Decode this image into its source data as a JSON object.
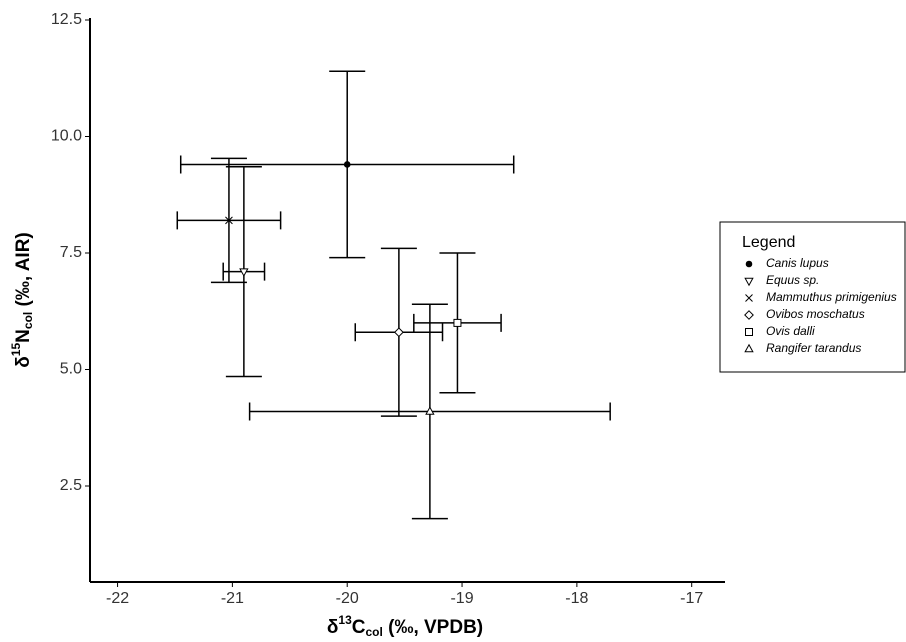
{
  "chart_data": {
    "type": "scatter",
    "x_label_parts": [
      "δ",
      "13",
      "C",
      "col",
      " (‰, VPDB)"
    ],
    "y_label_parts": [
      "δ",
      "15",
      "N",
      "col",
      " (‰, AIR)"
    ],
    "xlim": [
      -22.24,
      -16.71
    ],
    "ylim": [
      0.44,
      12.5
    ],
    "xticks": [
      -22,
      -21,
      -20,
      -19,
      -18,
      -17
    ],
    "yticks": [
      2.5,
      {
        "value": 5,
        "label": "5.0"
      },
      {
        "value": 7.5,
        "label": "7.5"
      },
      {
        "value": 10,
        "label": "10.0"
      },
      12.5
    ],
    "legend_title": "Legend",
    "legend_position": "right",
    "color": "#000000",
    "series": [
      {
        "name": "Canis lupus",
        "marker": "circle",
        "x": [
          -20.0
        ],
        "y": [
          9.4
        ],
        "xerr": [
          1.45
        ],
        "yerr": [
          2.0
        ]
      },
      {
        "name": "Equus sp.",
        "marker": "triangle-down",
        "x": [
          -20.9
        ],
        "y": [
          7.1
        ],
        "xerr": [
          0.18
        ],
        "yerr": [
          2.25
        ]
      },
      {
        "name": "Mammuthus primigenius",
        "marker": "x",
        "x": [
          -21.03
        ],
        "y": [
          8.2
        ],
        "xerr": [
          0.45
        ],
        "yerr": [
          1.33
        ]
      },
      {
        "name": "Ovibos moschatus",
        "marker": "diamond",
        "x": [
          -19.55
        ],
        "y": [
          5.8
        ],
        "xerr": [
          0.38
        ],
        "yerr": [
          1.8
        ]
      },
      {
        "name": "Ovis dalli",
        "marker": "square",
        "x": [
          -19.04
        ],
        "y": [
          6.0
        ],
        "xerr": [
          0.38
        ],
        "yerr": [
          1.5
        ]
      },
      {
        "name": "Rangifer tarandus",
        "marker": "triangle-up",
        "x": [
          -19.28
        ],
        "y": [
          4.1
        ],
        "xerr": [
          1.57
        ],
        "yerr": [
          2.3
        ]
      }
    ]
  }
}
